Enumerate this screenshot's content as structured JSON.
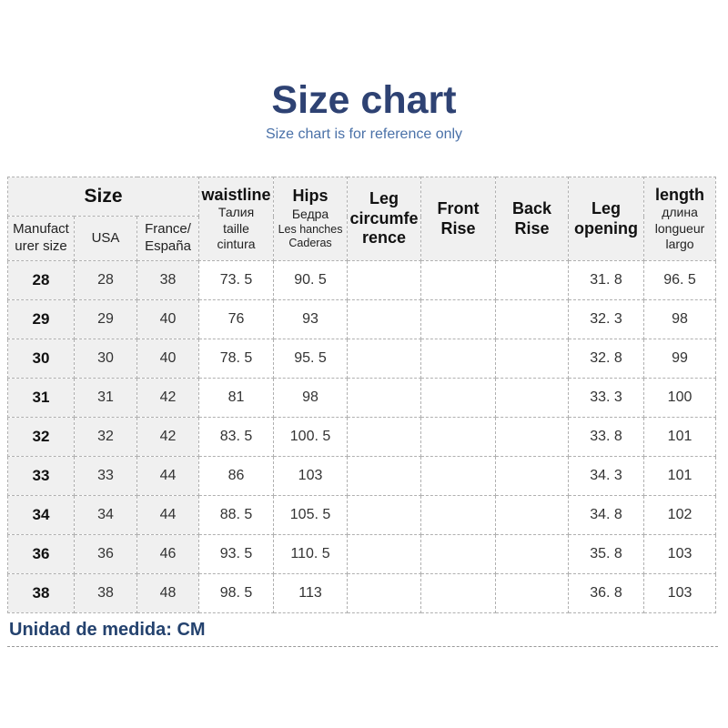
{
  "page": {
    "title": "Size chart",
    "subtitle": "Size chart is for reference only",
    "footer_note": "Unidad de medida: CM"
  },
  "colors": {
    "title_navy": "#2e4273",
    "subtitle_blue": "#4a71a8",
    "footer_navy": "#24426e",
    "header_cell_bg": "#f0f0f0",
    "border_gray": "#b0b0b0",
    "body_text": "#333333"
  },
  "table": {
    "size_group": {
      "label": "Size",
      "columns": [
        {
          "id": "manufacturer-size",
          "label_lines": [
            "Manufact",
            "urer size"
          ]
        },
        {
          "id": "usa",
          "label_lines": [
            "USA"
          ]
        },
        {
          "id": "france-espana",
          "label_lines": [
            "France/",
            "España"
          ]
        }
      ]
    },
    "measure_columns": [
      {
        "id": "waistline",
        "label_lines": [
          "waistline"
        ],
        "sub_lines": [
          "Талия",
          "taille",
          "cintura"
        ]
      },
      {
        "id": "hips",
        "label_lines": [
          "Hips"
        ],
        "sub_lines": [
          "Бедра",
          "Les hanches",
          "Caderas"
        ]
      },
      {
        "id": "leg-circumference",
        "label_lines": [
          "Leg",
          "circumfe",
          "rence"
        ],
        "sub_lines": []
      },
      {
        "id": "front-rise",
        "label_lines": [
          "Front",
          "Rise"
        ],
        "sub_lines": []
      },
      {
        "id": "back-rise",
        "label_lines": [
          "Back",
          "Rise"
        ],
        "sub_lines": []
      },
      {
        "id": "leg-opening",
        "label_lines": [
          "Leg",
          "opening"
        ],
        "sub_lines": []
      },
      {
        "id": "length",
        "label_lines": [
          "length"
        ],
        "sub_lines": [
          "длина",
          "longueur",
          "largo"
        ]
      }
    ],
    "rows": [
      {
        "manufacturer_size": "28",
        "usa": "28",
        "france_espana": "38",
        "waistline": "73. 5",
        "hips": "90. 5",
        "leg_circumference": "",
        "front_rise": "",
        "back_rise": "",
        "leg_opening": "31. 8",
        "length": "96. 5"
      },
      {
        "manufacturer_size": "29",
        "usa": "29",
        "france_espana": "40",
        "waistline": "76",
        "hips": "93",
        "leg_circumference": "",
        "front_rise": "",
        "back_rise": "",
        "leg_opening": "32. 3",
        "length": "98"
      },
      {
        "manufacturer_size": "30",
        "usa": "30",
        "france_espana": "40",
        "waistline": "78. 5",
        "hips": "95. 5",
        "leg_circumference": "",
        "front_rise": "",
        "back_rise": "",
        "leg_opening": "32. 8",
        "length": "99"
      },
      {
        "manufacturer_size": "31",
        "usa": "31",
        "france_espana": "42",
        "waistline": "81",
        "hips": "98",
        "leg_circumference": "",
        "front_rise": "",
        "back_rise": "",
        "leg_opening": "33. 3",
        "length": "100"
      },
      {
        "manufacturer_size": "32",
        "usa": "32",
        "france_espana": "42",
        "waistline": "83. 5",
        "hips": "100. 5",
        "leg_circumference": "",
        "front_rise": "",
        "back_rise": "",
        "leg_opening": "33. 8",
        "length": "101"
      },
      {
        "manufacturer_size": "33",
        "usa": "33",
        "france_espana": "44",
        "waistline": "86",
        "hips": "103",
        "leg_circumference": "",
        "front_rise": "",
        "back_rise": "",
        "leg_opening": "34. 3",
        "length": "101"
      },
      {
        "manufacturer_size": "34",
        "usa": "34",
        "france_espana": "44",
        "waistline": "88. 5",
        "hips": "105. 5",
        "leg_circumference": "",
        "front_rise": "",
        "back_rise": "",
        "leg_opening": "34. 8",
        "length": "102"
      },
      {
        "manufacturer_size": "36",
        "usa": "36",
        "france_espana": "46",
        "waistline": "93. 5",
        "hips": "110. 5",
        "leg_circumference": "",
        "front_rise": "",
        "back_rise": "",
        "leg_opening": "35. 8",
        "length": "103"
      },
      {
        "manufacturer_size": "38",
        "usa": "38",
        "france_espana": "48",
        "waistline": "98. 5",
        "hips": "113",
        "leg_circumference": "",
        "front_rise": "",
        "back_rise": "",
        "leg_opening": "36. 8",
        "length": "103"
      }
    ]
  },
  "chart_data": {
    "type": "table",
    "title": "Size chart",
    "subtitle": "Size chart is for reference only",
    "unit": "CM",
    "columns": [
      "Manufacturer size",
      "USA",
      "France/España",
      "waistline (Талия taille cintura)",
      "Hips (Бедра Les hanches Caderas)",
      "Leg circumference",
      "Front Rise",
      "Back Rise",
      "Leg opening",
      "length (длина longueur largo)"
    ],
    "rows": [
      [
        28,
        28,
        38,
        73.5,
        90.5,
        null,
        null,
        null,
        31.8,
        96.5
      ],
      [
        29,
        29,
        40,
        76,
        93,
        null,
        null,
        null,
        32.3,
        98
      ],
      [
        30,
        30,
        40,
        78.5,
        95.5,
        null,
        null,
        null,
        32.8,
        99
      ],
      [
        31,
        31,
        42,
        81,
        98,
        null,
        null,
        null,
        33.3,
        100
      ],
      [
        32,
        32,
        42,
        83.5,
        100.5,
        null,
        null,
        null,
        33.8,
        101
      ],
      [
        33,
        33,
        44,
        86,
        103,
        null,
        null,
        null,
        34.3,
        101
      ],
      [
        34,
        34,
        44,
        88.5,
        105.5,
        null,
        null,
        null,
        34.8,
        102
      ],
      [
        36,
        36,
        46,
        93.5,
        110.5,
        null,
        null,
        null,
        35.8,
        103
      ],
      [
        38,
        38,
        48,
        98.5,
        113,
        null,
        null,
        null,
        36.8,
        103
      ]
    ]
  }
}
